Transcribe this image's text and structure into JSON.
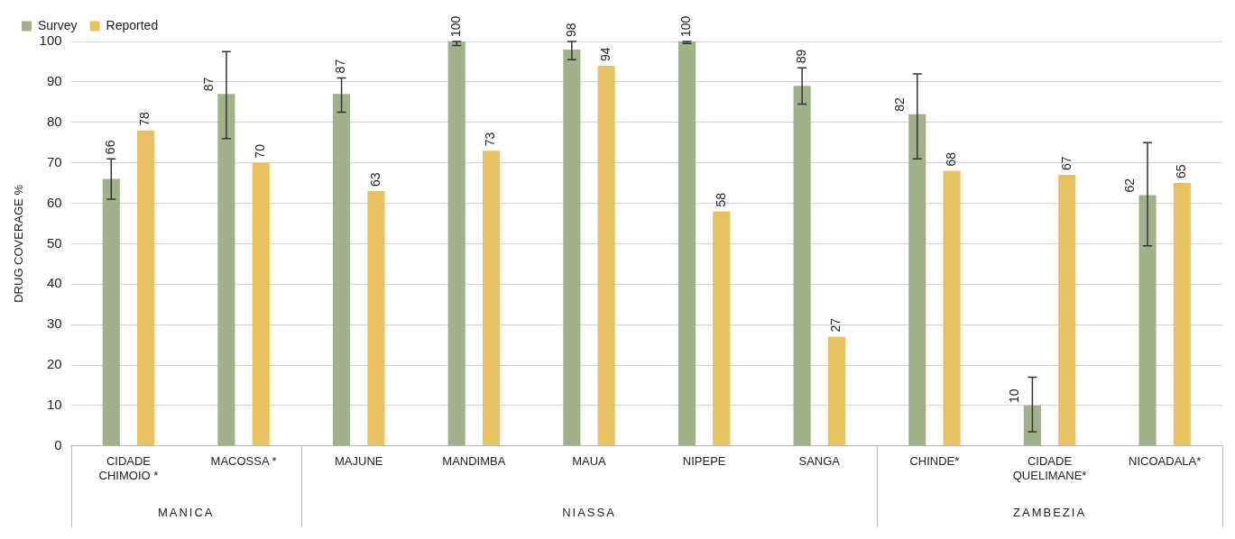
{
  "chart_data": {
    "type": "bar",
    "ylabel": "DRUG COVERAGE %",
    "categories": [
      "CIDADE\nCHIMOIO *",
      "MACOSSA *",
      "MAJUNE",
      "MANDIMBA",
      "MAUA",
      "NIPEPE",
      "SANGA",
      "CHINDE*",
      "CIDADE\nQUELIMANE*",
      "NICOADALA*"
    ],
    "series": [
      {
        "name": "Survey",
        "color": "#a1b18a",
        "values": [
          66,
          87,
          87,
          100,
          98,
          100,
          89,
          82,
          10,
          62
        ],
        "errors": [
          [
            61,
            71
          ],
          [
            76,
            97.5
          ],
          [
            82.5,
            91
          ],
          [
            99,
            100
          ],
          [
            95.5,
            100
          ],
          [
            99.5,
            100
          ],
          [
            84.5,
            93.5
          ],
          [
            71,
            92
          ],
          [
            3.5,
            17
          ],
          [
            49.5,
            75
          ]
        ]
      },
      {
        "name": "Reported",
        "color": "#e8c262",
        "values": [
          78,
          70,
          63,
          73,
          94,
          58,
          27,
          68,
          67,
          65
        ]
      }
    ],
    "annotations": [
      "MANICA",
      "NIASSA",
      "ZAMBEZIA"
    ],
    "ylim": [
      0,
      100
    ],
    "yticks": [
      0,
      10,
      20,
      30,
      40,
      50,
      60,
      70,
      80,
      90,
      100
    ],
    "grid": "y",
    "legend": "top left",
    "data_labels": true
  }
}
